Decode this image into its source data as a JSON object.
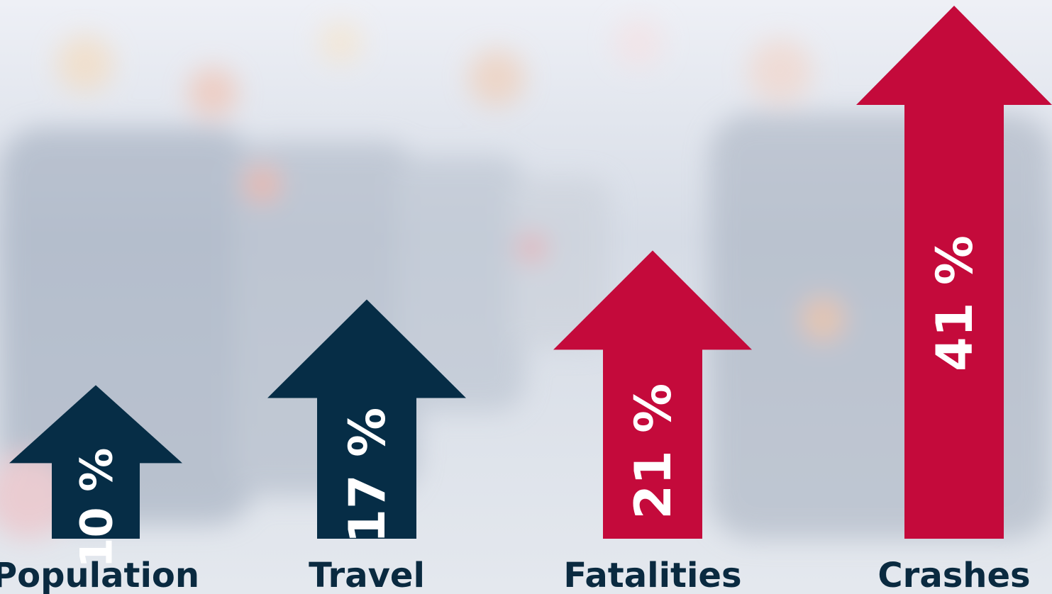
{
  "chart_data": {
    "type": "arrow-bar",
    "categories": [
      "Population",
      "Travel",
      "Fatalities",
      "Crashes"
    ],
    "values": [
      10,
      17,
      21,
      41
    ],
    "value_labels": [
      "10 %",
      "17 %",
      "21 %",
      "41 %"
    ],
    "colors": [
      "#062d46",
      "#062d46",
      "#c40a3b",
      "#c40a3b"
    ]
  }
}
